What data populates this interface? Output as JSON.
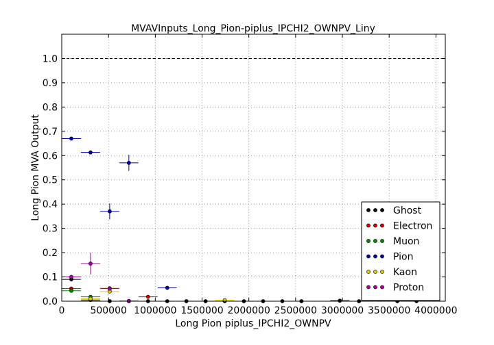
{
  "chart_data": {
    "type": "scatter",
    "title": "MVAVInputs_Long_Pion-piplus_IPCHI2_OWNPV_Liny",
    "xlabel": "Long Pion piplus_IPCHI2_OWNPV",
    "ylabel": "Long Pion MVA Output",
    "xlim": [
      0,
      4100000
    ],
    "ylim": [
      0,
      1.1
    ],
    "x_ticks": [
      0,
      500000,
      1000000,
      1500000,
      2000000,
      2500000,
      3000000,
      3500000,
      4000000
    ],
    "x_tick_labels": [
      "0",
      "500000",
      "1000000",
      "1500000",
      "2000000",
      "2500000",
      "3000000",
      "3500000",
      "4000000"
    ],
    "y_ticks": [
      0.0,
      0.1,
      0.2,
      0.3,
      0.4,
      0.5,
      0.6,
      0.7,
      0.8,
      0.9,
      1.0
    ],
    "y_tick_labels": [
      "0.0",
      "0.1",
      "0.2",
      "0.3",
      "0.4",
      "0.5",
      "0.6",
      "0.7",
      "0.8",
      "0.9",
      "1.0"
    ],
    "grid": true,
    "reference_line": {
      "y": 1.0,
      "style": "dashed"
    },
    "legend_position": "lower-right",
    "series": [
      {
        "name": "Ghost",
        "color": "#000000",
        "points": [
          {
            "x": 102500,
            "y": 0.09,
            "xerr": 102500,
            "yerr": 0.005
          },
          {
            "x": 307500,
            "y": 0.005,
            "xerr": 102500,
            "yerr": 0.003
          },
          {
            "x": 512500,
            "y": 0.0
          },
          {
            "x": 717500,
            "y": 0.0
          },
          {
            "x": 922500,
            "y": 0.0
          },
          {
            "x": 1127500,
            "y": 0.0
          },
          {
            "x": 1332500,
            "y": 0.0
          },
          {
            "x": 1537500,
            "y": 0.0
          },
          {
            "x": 1742500,
            "y": 0.0
          },
          {
            "x": 1947500,
            "y": 0.0
          },
          {
            "x": 2152500,
            "y": 0.0
          },
          {
            "x": 2357500,
            "y": 0.0
          },
          {
            "x": 2562500,
            "y": 0.0
          },
          {
            "x": 2972500,
            "y": 0.002,
            "xerr": 102500
          },
          {
            "x": 3177500,
            "y": 0.0
          },
          {
            "x": 3587500,
            "y": 0.0
          },
          {
            "x": 3792500,
            "y": 0.0
          }
        ]
      },
      {
        "name": "Electron",
        "color": "#cc0000",
        "points": [
          {
            "x": 102500,
            "y": 0.052,
            "xerr": 102500,
            "yerr": 0.005
          },
          {
            "x": 512500,
            "y": 0.053,
            "xerr": 102500,
            "yerr": 0.006
          },
          {
            "x": 922500,
            "y": 0.018,
            "xerr": 102500,
            "yerr": 0.004
          }
        ]
      },
      {
        "name": "Muon",
        "color": "#008800",
        "points": [
          {
            "x": 102500,
            "y": 0.043,
            "xerr": 102500,
            "yerr": 0.004
          },
          {
            "x": 307500,
            "y": 0.018,
            "xerr": 102500,
            "yerr": 0.003
          }
        ]
      },
      {
        "name": "Pion",
        "color": "#0000aa",
        "points": [
          {
            "x": 102500,
            "y": 0.67,
            "xerr": 102500,
            "yerr": 0.003
          },
          {
            "x": 307500,
            "y": 0.613,
            "xerr": 102500,
            "yerr": 0.008
          },
          {
            "x": 512500,
            "y": 0.37,
            "xerr": 102500,
            "yerr": 0.033
          },
          {
            "x": 717500,
            "y": 0.57,
            "xerr": 102500,
            "yerr": 0.033
          },
          {
            "x": 1127500,
            "y": 0.055,
            "xerr": 102500,
            "yerr": 0.004
          }
        ]
      },
      {
        "name": "Kaon",
        "color": "#ddcc00",
        "points": [
          {
            "x": 307500,
            "y": 0.01,
            "xerr": 102500,
            "yerr": 0.003
          },
          {
            "x": 512500,
            "y": 0.04,
            "xerr": 102500,
            "yerr": 0.005
          },
          {
            "x": 1742500,
            "y": 0.004,
            "xerr": 102500,
            "yerr": 0.002
          }
        ]
      },
      {
        "name": "Proton",
        "color": "#aa00aa",
        "points": [
          {
            "x": 102500,
            "y": 0.1,
            "xerr": 102500,
            "yerr": 0.004
          },
          {
            "x": 307500,
            "y": 0.155,
            "xerr": 102500,
            "yerr": 0.045
          },
          {
            "x": 512500,
            "y": 0.052,
            "xerr": 102500,
            "yerr": 0.006
          },
          {
            "x": 717500,
            "y": 0.001,
            "xerr": 102500,
            "yerr": 0.002
          }
        ]
      }
    ]
  }
}
